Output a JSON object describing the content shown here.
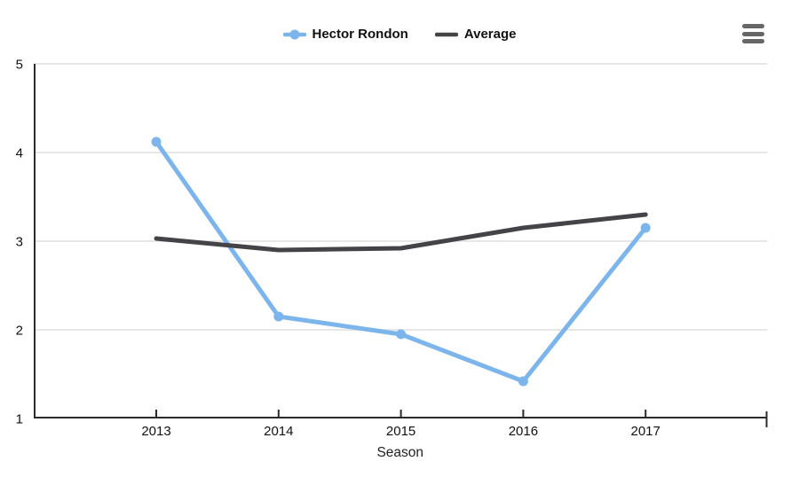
{
  "page": {
    "background": "#ffffff"
  },
  "legend": {
    "items": [
      {
        "label": "Hector Rondon",
        "color": "#7cb5ec",
        "symbol": "line-with-dot"
      },
      {
        "label": "Average",
        "color": "#434348",
        "symbol": "line"
      }
    ]
  },
  "menu": {
    "icon": "hamburger-icon",
    "color": "#666666",
    "bars": 3
  },
  "chart_data": {
    "type": "line",
    "categories": [
      "2013",
      "2014",
      "2015",
      "2016",
      "2017"
    ],
    "series": [
      {
        "name": "Hector Rondon",
        "color": "#7cb5ec",
        "values": [
          4.12,
          2.15,
          1.95,
          1.42,
          3.15
        ],
        "markers": true,
        "line_width": 5,
        "marker_radius": 5.5
      },
      {
        "name": "Average",
        "color": "#434348",
        "values": [
          3.03,
          2.9,
          2.92,
          3.15,
          3.3
        ],
        "markers": false,
        "line_width": 5,
        "marker_radius": 0
      }
    ],
    "title": "",
    "xlabel": "Season",
    "ylabel": "",
    "ylim": [
      1,
      5
    ],
    "yticks": [
      1,
      2,
      3,
      4,
      5
    ],
    "grid": true,
    "legend_position": "top-center",
    "style": {
      "axis_line_color": "#2b2b2b",
      "grid_color": "#e6e6e6",
      "tick_label_color": "#111111",
      "axis_title_color": "#222222"
    }
  }
}
